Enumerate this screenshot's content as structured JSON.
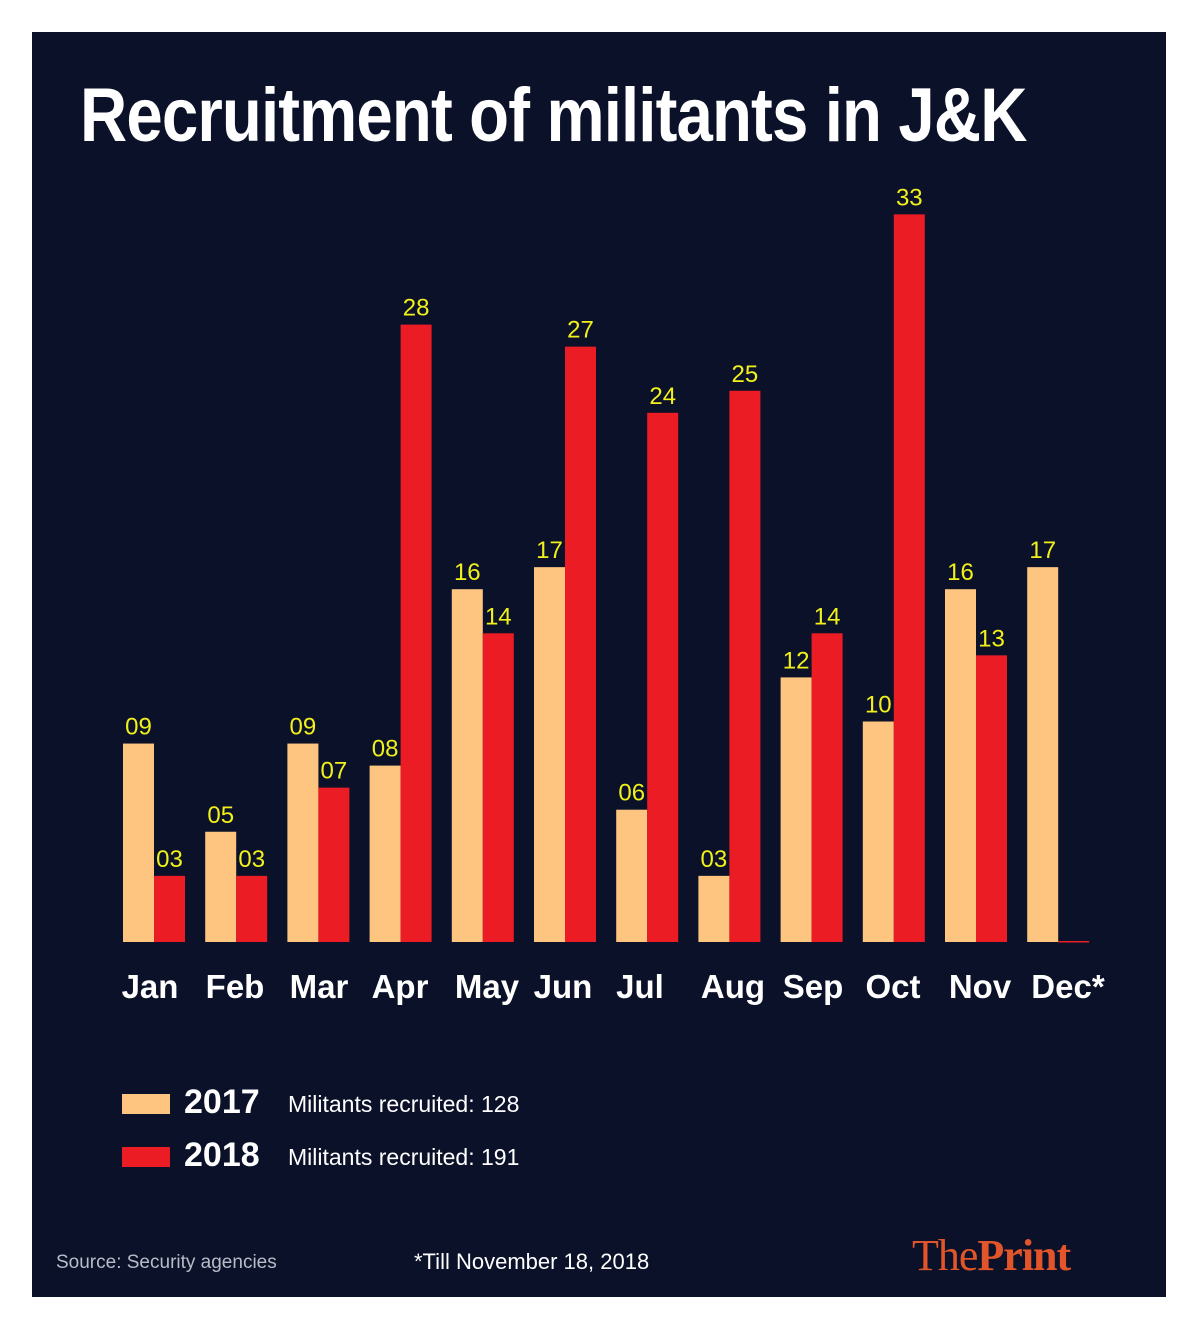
{
  "colors": {
    "background": "#0a1128",
    "series_2017": "#fdc57f",
    "series_2018": "#ec1c24",
    "value_label": "#f1f01c",
    "text": "#ffffff",
    "logo": "#e2552a"
  },
  "chart_data": {
    "type": "bar",
    "title": "Recruitment of militants in J&K",
    "categories": [
      "Jan",
      "Feb",
      "Mar",
      "Apr",
      "May",
      "Jun",
      "Jul",
      "Aug",
      "Sep",
      "Oct",
      "Nov",
      "Dec*"
    ],
    "series": [
      {
        "name": "2017",
        "values": [
          9,
          5,
          9,
          8,
          16,
          17,
          6,
          3,
          12,
          10,
          16,
          17
        ],
        "labels": [
          "09",
          "05",
          "09",
          "08",
          "16",
          "17",
          "06",
          "03",
          "12",
          "10",
          "16",
          "17"
        ]
      },
      {
        "name": "2018",
        "values": [
          3,
          3,
          7,
          28,
          14,
          27,
          24,
          25,
          14,
          33,
          13,
          null
        ],
        "labels": [
          "03",
          "03",
          "07",
          "28",
          "14",
          "27",
          "24",
          "25",
          "14",
          "33",
          "13",
          null
        ]
      }
    ],
    "xlabel": "",
    "ylabel": "",
    "ylim": [
      0,
      33
    ],
    "grid": false,
    "legend_position": "bottom-left"
  },
  "legend": [
    {
      "year": "2017",
      "note": "Militants recruited: 128"
    },
    {
      "year": "2018",
      "note": "Militants recruited: 191"
    }
  ],
  "footer": {
    "source": "Source: Security agencies",
    "footnote": "*Till November 18, 2018",
    "logo_the": "The",
    "logo_print": "Print"
  }
}
